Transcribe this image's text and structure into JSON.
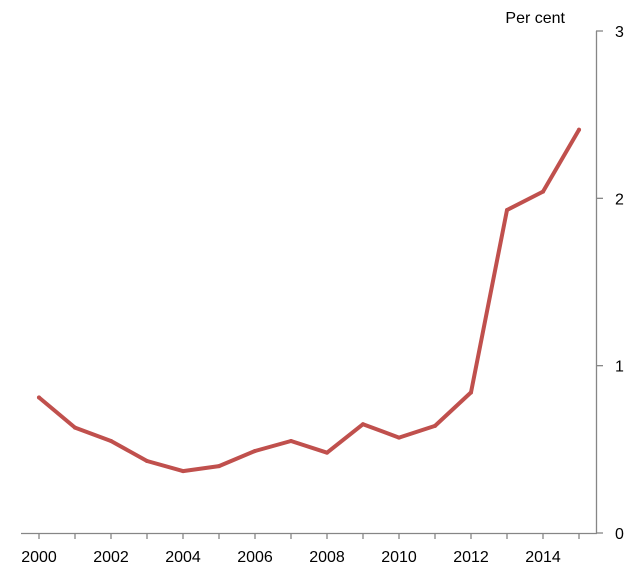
{
  "chart_data": {
    "type": "line",
    "title": "",
    "xlabel": "",
    "ylabel": "",
    "y_unit": "Per cent",
    "y_axis_position": "right",
    "grid": false,
    "legend": "none",
    "xlim": [
      1999.5,
      2015.5
    ],
    "ylim": [
      0,
      3
    ],
    "x_ticks": [
      2000,
      2002,
      2004,
      2006,
      2008,
      2010,
      2012,
      2014
    ],
    "x_tick_labels": [
      "2000",
      "2002",
      "2004",
      "2006",
      "2008",
      "2010",
      "2012",
      "2014"
    ],
    "y_ticks": [
      0,
      1,
      2,
      3
    ],
    "y_tick_labels": [
      "0",
      "1",
      "2",
      "3"
    ],
    "series": [
      {
        "color": "#c0504d",
        "x": [
          2000,
          2001,
          2002,
          2003,
          2004,
          2005,
          2006,
          2007,
          2008,
          2009,
          2010,
          2011,
          2012,
          2013,
          2014,
          2015
        ],
        "y": [
          0.81,
          0.63,
          0.55,
          0.43,
          0.37,
          0.4,
          0.49,
          0.55,
          0.48,
          0.65,
          0.57,
          0.64,
          0.84,
          1.93,
          2.04,
          2.41
        ]
      }
    ]
  }
}
